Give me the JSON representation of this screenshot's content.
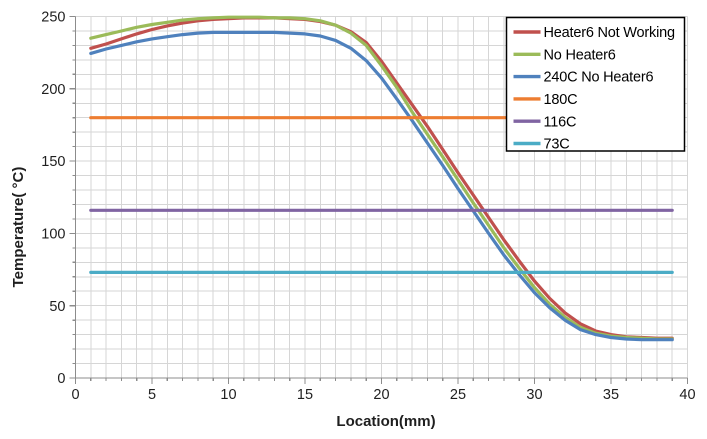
{
  "figure": {
    "background": "#ffffff",
    "grid_color": "#d6d6d6",
    "axis_color": "#8c8c8c",
    "text_color": "#1f1f1f",
    "legend_border_color": "#000000",
    "legend_fill": "#ffffff"
  },
  "legend": {
    "position": "top-right",
    "entries": [
      {
        "label": "Heater6 Not Working",
        "color": "#C0504D"
      },
      {
        "label": "No Heater6",
        "color": "#9BBB59"
      },
      {
        "label": "240C No Heater6",
        "color": "#4F81BD"
      },
      {
        "label": "180C",
        "color": "#ED7D31"
      },
      {
        "label": "116C",
        "color": "#8064A2"
      },
      {
        "label": "73C",
        "color": "#4BACC6"
      }
    ]
  },
  "chart_data": {
    "type": "line",
    "title": "",
    "xlabel": "Location(mm)",
    "ylabel": "Temperature( °C)",
    "x_range": [
      0,
      40
    ],
    "y_range": [
      0,
      250
    ],
    "x_major_tick": 5,
    "x_minor_tick": 1,
    "y_major_tick": 50,
    "y_minor_tick": 10,
    "grid": {
      "x_step": 1,
      "y_step": 10,
      "on": true
    },
    "legend_position": "top-right",
    "x": [
      1,
      2,
      3,
      4,
      5,
      6,
      7,
      8,
      9,
      10,
      11,
      12,
      13,
      14,
      15,
      16,
      17,
      18,
      19,
      20,
      21,
      22,
      23,
      24,
      25,
      26,
      27,
      28,
      29,
      30,
      31,
      32,
      33,
      34,
      35,
      36,
      37,
      38,
      39
    ],
    "series": [
      {
        "name": "Heater6 Not Working",
        "color": "#C0504D",
        "values": [
          228,
          231,
          234.5,
          238,
          241,
          243.5,
          245.5,
          247,
          248,
          248.5,
          249,
          249,
          249,
          248.5,
          248,
          246.5,
          244,
          239.5,
          232,
          219,
          204,
          189,
          174,
          158,
          142,
          126.5,
          111,
          95.5,
          81,
          67,
          55,
          45,
          37.5,
          32.5,
          30,
          28.5,
          28,
          27.5,
          27.5
        ]
      },
      {
        "name": "No Heater6",
        "color": "#9BBB59",
        "values": [
          235,
          237.5,
          240,
          242.5,
          244.5,
          246,
          247.5,
          248.5,
          249,
          249.5,
          249.5,
          249.5,
          249,
          249,
          248.5,
          247,
          244,
          238.5,
          230,
          216,
          201,
          184,
          168.5,
          153,
          137,
          121,
          105.5,
          90,
          76,
          62.5,
          51,
          42,
          35,
          31,
          29,
          28,
          27.5,
          27,
          27
        ]
      },
      {
        "name": "240C No Heater6",
        "color": "#4F81BD",
        "values": [
          224.5,
          227.5,
          230,
          232.5,
          234.5,
          236,
          237.5,
          238.5,
          239,
          239,
          239,
          239,
          239,
          238.5,
          238,
          236.5,
          233.5,
          228,
          219.5,
          207.5,
          193,
          178,
          162.5,
          147,
          131,
          115.5,
          100,
          85,
          71.5,
          59,
          48.5,
          40,
          33.5,
          30,
          28,
          27,
          26.5,
          26.5,
          26.5
        ]
      },
      {
        "name": "180C",
        "color": "#ED7D31",
        "constant": 180
      },
      {
        "name": "116C",
        "color": "#8064A2",
        "constant": 116
      },
      {
        "name": "73C",
        "color": "#4BACC6",
        "constant": 73
      }
    ]
  }
}
